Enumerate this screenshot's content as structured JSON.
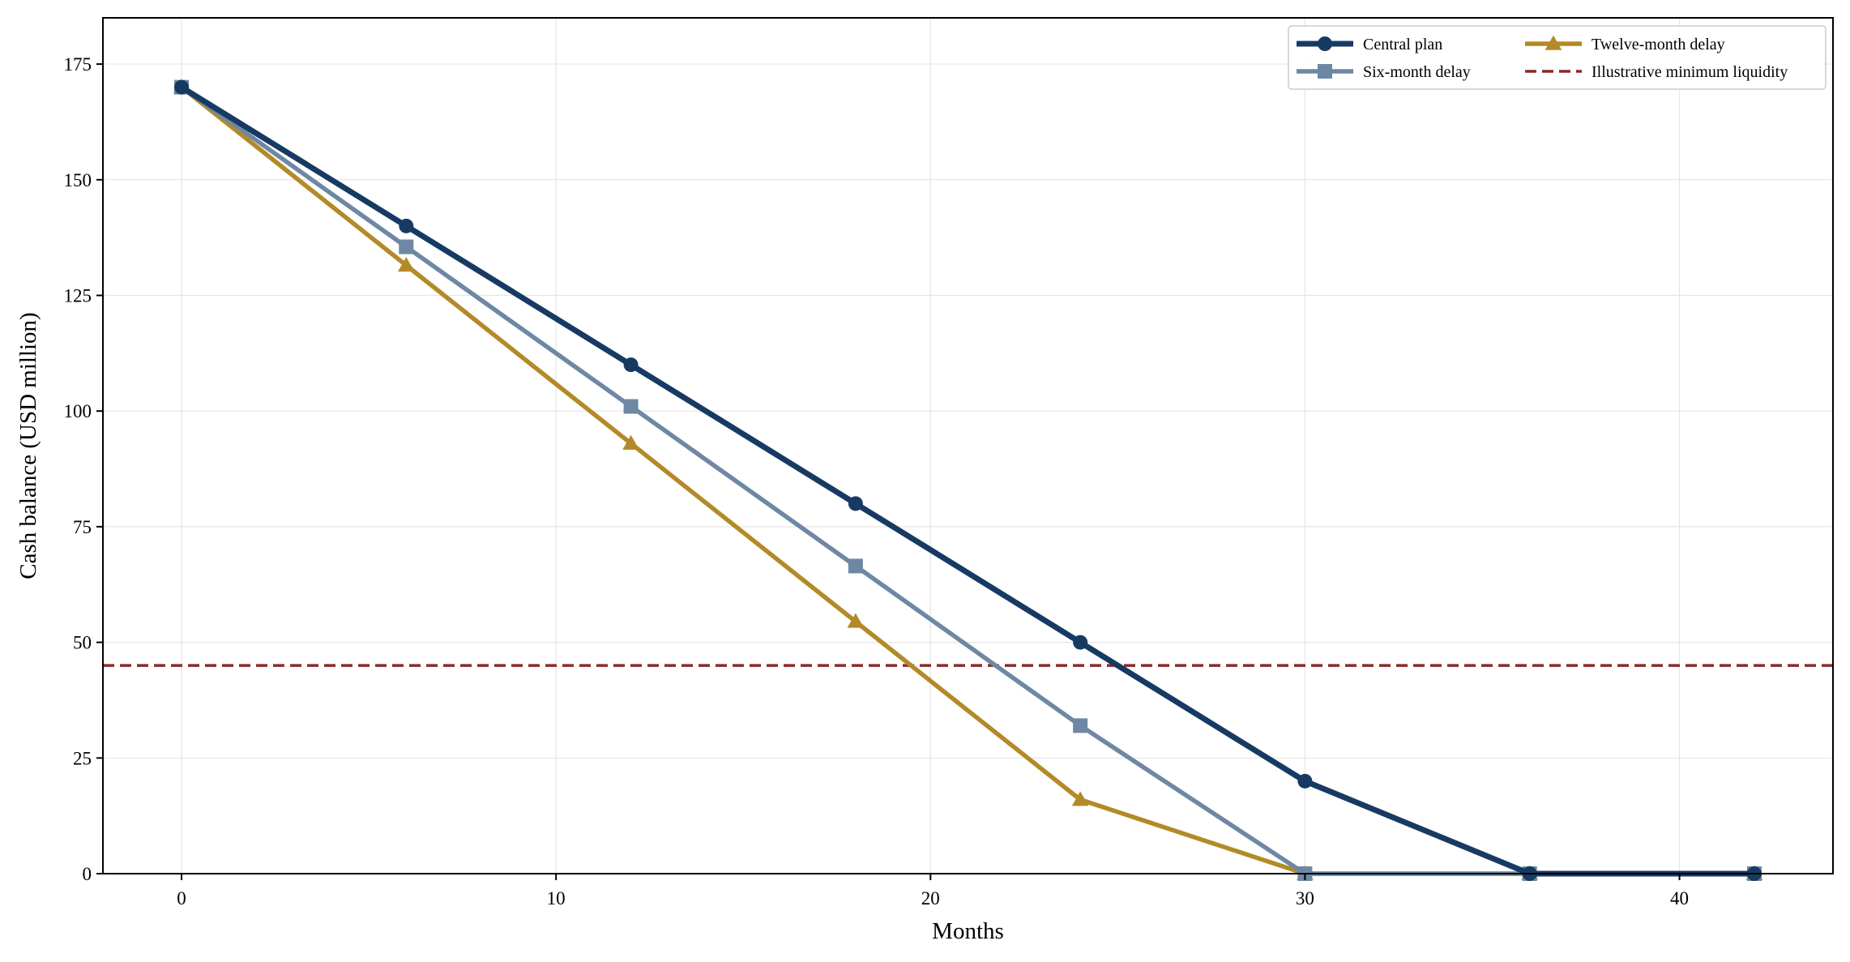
{
  "chart_data": {
    "type": "line",
    "title": "",
    "xlabel": "Months",
    "ylabel": "Cash balance (USD million)",
    "xlim": [
      -2.1,
      44.1
    ],
    "ylim": [
      0,
      185
    ],
    "xticks": [
      0,
      10,
      20,
      30,
      40
    ],
    "yticks": [
      0,
      25,
      50,
      75,
      100,
      125,
      150,
      175
    ],
    "grid": true,
    "legend_position": "top-right",
    "x": [
      0,
      6,
      12,
      18,
      24,
      30,
      36,
      42
    ],
    "series": [
      {
        "name": "Central plan",
        "values": [
          170,
          140,
          110,
          80,
          50,
          20,
          0,
          0
        ],
        "color": "#173a63",
        "marker": "circle"
      },
      {
        "name": "Six-month delay",
        "values": [
          170,
          135.5,
          101,
          66.5,
          32,
          0,
          0,
          0
        ],
        "color": "#6e88a4",
        "marker": "square"
      },
      {
        "name": "Twelve-month delay",
        "values": [
          170,
          131.5,
          93,
          54.5,
          16,
          0,
          0,
          0
        ],
        "color": "#b38a27",
        "marker": "triangle"
      }
    ],
    "reference_lines": [
      {
        "name": "Illustrative minimum liquidity",
        "y": 45,
        "color": "#8b2a2a",
        "style": "dashed"
      }
    ]
  }
}
